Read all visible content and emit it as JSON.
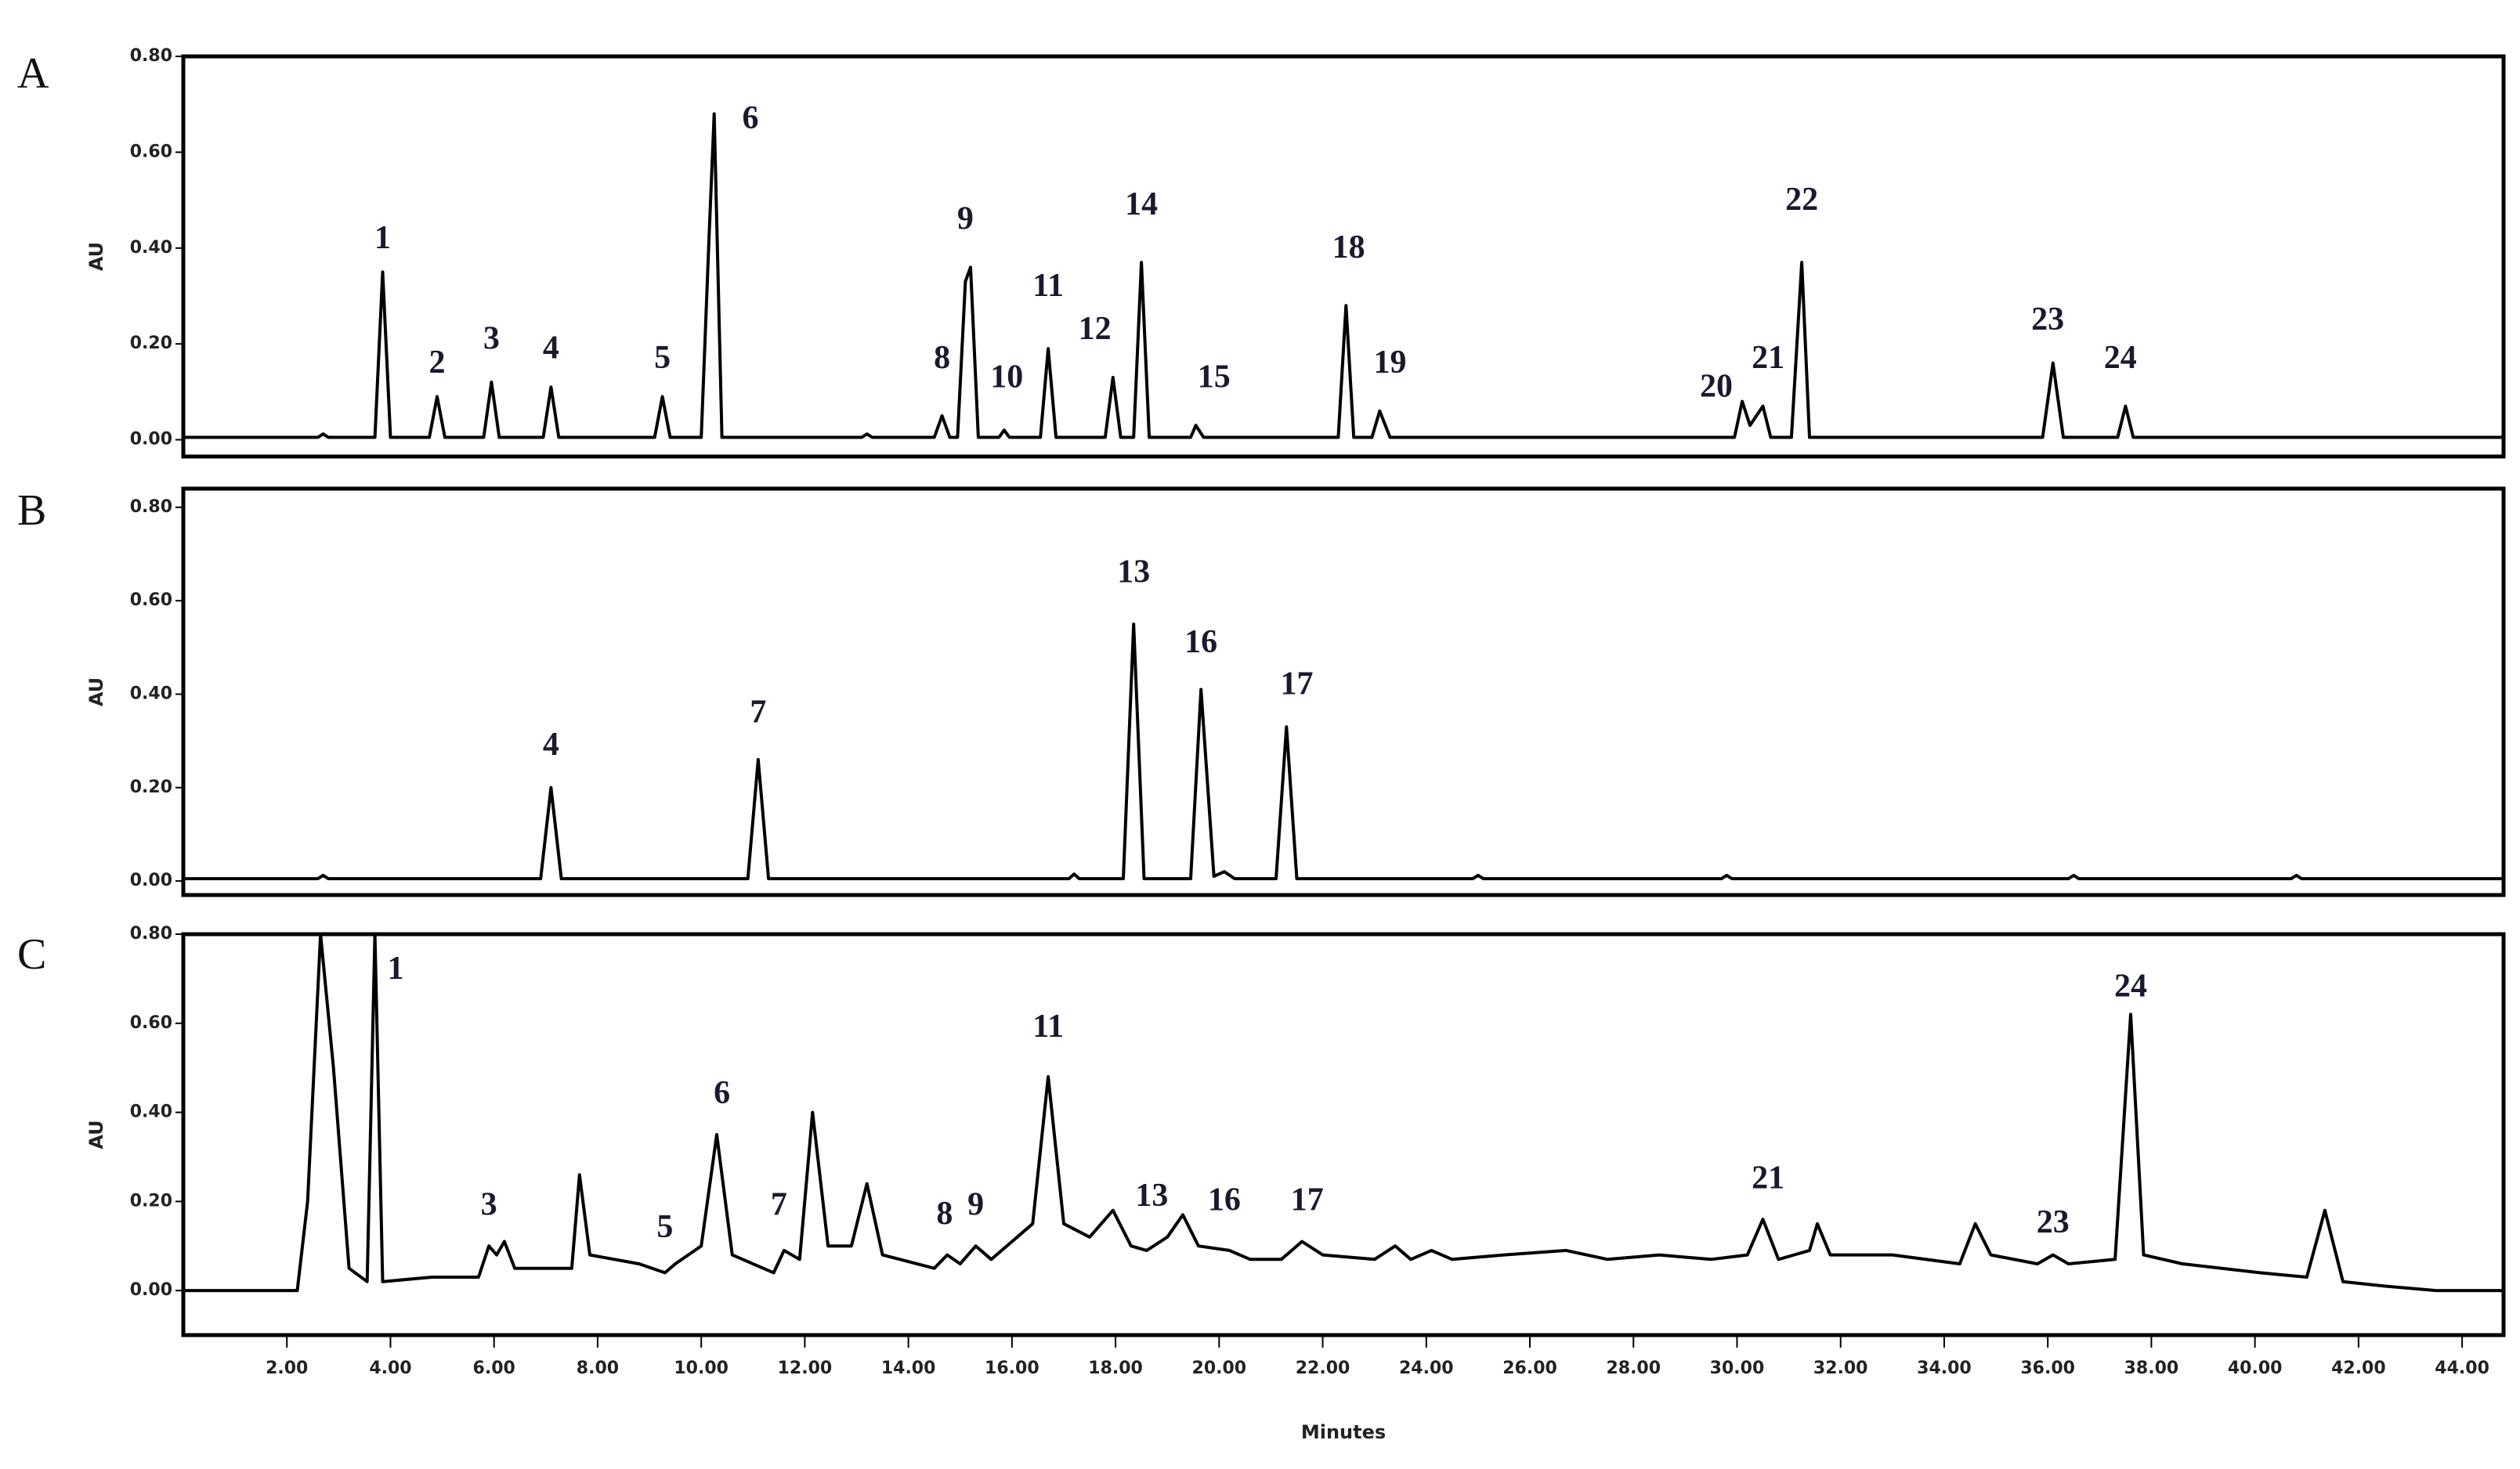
{
  "chart_data": [
    {
      "type": "line",
      "label": "A",
      "y_label": "AU",
      "color": "#000000",
      "xlim": [
        0,
        44.8
      ],
      "ylim": [
        -0.035,
        0.8
      ],
      "yticks": [
        {
          "value": 0,
          "label": "0.00"
        },
        {
          "value": 0.2,
          "label": "0.20"
        },
        {
          "value": 0.4,
          "label": "0.40"
        },
        {
          "value": 0.6,
          "label": "0.60"
        },
        {
          "value": 0.8,
          "label": "0.80"
        }
      ],
      "x": [
        0,
        2.6,
        2.7,
        2.8,
        3.7,
        3.85,
        4.0,
        4.75,
        4.9,
        5.05,
        5.8,
        5.95,
        6.1,
        6.95,
        7.1,
        7.25,
        9.1,
        9.25,
        9.4,
        10.0,
        10.15,
        10.25,
        10.4,
        13.1,
        13.2,
        13.3,
        14.5,
        14.65,
        14.8,
        14.95,
        15.1,
        15.2,
        15.35,
        15.75,
        15.85,
        15.95,
        16.55,
        16.7,
        16.85,
        17.8,
        17.95,
        18.1,
        18.35,
        18.5,
        18.65,
        19.45,
        19.55,
        19.7,
        22.3,
        22.45,
        22.6,
        22.95,
        23.1,
        23.3,
        29.95,
        30.1,
        30.25,
        30.5,
        30.65,
        31.05,
        31.25,
        31.4,
        35.9,
        36.1,
        36.3,
        37.35,
        37.5,
        37.65,
        44.8
      ],
      "values": [
        0.005,
        0.005,
        0.012,
        0.005,
        0.005,
        0.35,
        0.005,
        0.005,
        0.09,
        0.005,
        0.005,
        0.12,
        0.005,
        0.005,
        0.11,
        0.005,
        0.005,
        0.09,
        0.005,
        0.005,
        0.42,
        0.68,
        0.005,
        0.005,
        0.012,
        0.005,
        0.005,
        0.05,
        0.005,
        0.005,
        0.33,
        0.36,
        0.005,
        0.005,
        0.02,
        0.005,
        0.005,
        0.19,
        0.005,
        0.005,
        0.13,
        0.005,
        0.005,
        0.37,
        0.005,
        0.005,
        0.03,
        0.005,
        0.005,
        0.28,
        0.005,
        0.005,
        0.06,
        0.005,
        0.005,
        0.08,
        0.03,
        0.07,
        0.005,
        0.005,
        0.37,
        0.005,
        0.005,
        0.16,
        0.005,
        0.005,
        0.07,
        0.005,
        0.005
      ],
      "annotations": [
        {
          "text": "1",
          "x": 3.85,
          "y": 0.4
        },
        {
          "text": "2",
          "x": 4.9,
          "y": 0.14
        },
        {
          "text": "3",
          "x": 5.95,
          "y": 0.19
        },
        {
          "text": "4",
          "x": 7.1,
          "y": 0.17
        },
        {
          "text": "5",
          "x": 9.25,
          "y": 0.15
        },
        {
          "text": "6",
          "x": 10.95,
          "y": 0.65
        },
        {
          "text": "8",
          "x": 14.65,
          "y": 0.15
        },
        {
          "text": "9",
          "x": 15.1,
          "y": 0.44
        },
        {
          "text": "10",
          "x": 15.9,
          "y": 0.11
        },
        {
          "text": "11",
          "x": 16.7,
          "y": 0.3
        },
        {
          "text": "12",
          "x": 17.6,
          "y": 0.21
        },
        {
          "text": "14",
          "x": 18.5,
          "y": 0.47
        },
        {
          "text": "15",
          "x": 19.9,
          "y": 0.11
        },
        {
          "text": "18",
          "x": 22.5,
          "y": 0.38
        },
        {
          "text": "19",
          "x": 23.3,
          "y": 0.14
        },
        {
          "text": "20",
          "x": 29.6,
          "y": 0.09
        },
        {
          "text": "21",
          "x": 30.6,
          "y": 0.15
        },
        {
          "text": "22",
          "x": 31.25,
          "y": 0.48
        },
        {
          "text": "23",
          "x": 36.0,
          "y": 0.23
        },
        {
          "text": "24",
          "x": 37.4,
          "y": 0.15
        }
      ]
    },
    {
      "type": "line",
      "label": "B",
      "y_label": "AU",
      "color": "#000000",
      "xlim": [
        0,
        44.8
      ],
      "ylim": [
        -0.03,
        0.84
      ],
      "yticks": [
        {
          "value": 0,
          "label": "0.00"
        },
        {
          "value": 0.2,
          "label": "0.20"
        },
        {
          "value": 0.4,
          "label": "0.40"
        },
        {
          "value": 0.6,
          "label": "0.60"
        },
        {
          "value": 0.8,
          "label": "0.80"
        }
      ],
      "x": [
        0,
        2.6,
        2.7,
        2.8,
        6.9,
        7.1,
        7.3,
        10.9,
        11.1,
        11.3,
        17.1,
        17.2,
        17.3,
        18.15,
        18.35,
        18.55,
        19.45,
        19.65,
        19.9,
        20.1,
        20.3,
        21.1,
        21.3,
        21.5,
        24.9,
        25.0,
        25.1,
        29.7,
        29.8,
        29.9,
        36.4,
        36.5,
        36.6,
        40.7,
        40.8,
        40.9,
        44.8
      ],
      "values": [
        0.005,
        0.005,
        0.012,
        0.005,
        0.005,
        0.2,
        0.005,
        0.005,
        0.26,
        0.005,
        0.005,
        0.015,
        0.005,
        0.005,
        0.55,
        0.005,
        0.005,
        0.41,
        0.01,
        0.02,
        0.005,
        0.005,
        0.33,
        0.005,
        0.005,
        0.012,
        0.005,
        0.005,
        0.012,
        0.005,
        0.005,
        0.012,
        0.005,
        0.005,
        0.012,
        0.005,
        0.005
      ],
      "annotations": [
        {
          "text": "4",
          "x": 7.1,
          "y": 0.27
        },
        {
          "text": "7",
          "x": 11.1,
          "y": 0.34
        },
        {
          "text": "13",
          "x": 18.35,
          "y": 0.64
        },
        {
          "text": "16",
          "x": 19.65,
          "y": 0.49
        },
        {
          "text": "17",
          "x": 21.5,
          "y": 0.4
        }
      ]
    },
    {
      "type": "line",
      "label": "C",
      "y_label": "AU",
      "x_label": "Minutes",
      "color": "#000000",
      "xlim": [
        0,
        44.8
      ],
      "ylim": [
        -0.1,
        0.8
      ],
      "yticks": [
        {
          "value": 0,
          "label": "0.00"
        },
        {
          "value": 0.2,
          "label": "0.20"
        },
        {
          "value": 0.4,
          "label": "0.40"
        },
        {
          "value": 0.6,
          "label": "0.60"
        },
        {
          "value": 0.8,
          "label": "0.80"
        }
      ],
      "xticks": [
        {
          "value": 2,
          "label": "2.00"
        },
        {
          "value": 4,
          "label": "4.00"
        },
        {
          "value": 6,
          "label": "6.00"
        },
        {
          "value": 8,
          "label": "8.00"
        },
        {
          "value": 10,
          "label": "10.00"
        },
        {
          "value": 12,
          "label": "12.00"
        },
        {
          "value": 14,
          "label": "14.00"
        },
        {
          "value": 16,
          "label": "16.00"
        },
        {
          "value": 18,
          "label": "18.00"
        },
        {
          "value": 20,
          "label": "20.00"
        },
        {
          "value": 22,
          "label": "22.00"
        },
        {
          "value": 24,
          "label": "24.00"
        },
        {
          "value": 26,
          "label": "26.00"
        },
        {
          "value": 28,
          "label": "28.00"
        },
        {
          "value": 30,
          "label": "30.00"
        },
        {
          "value": 32,
          "label": "32.00"
        },
        {
          "value": 34,
          "label": "34.00"
        },
        {
          "value": 36,
          "label": "36.00"
        },
        {
          "value": 38,
          "label": "38.00"
        },
        {
          "value": 40,
          "label": "40.00"
        },
        {
          "value": 42,
          "label": "42.00"
        },
        {
          "value": 44,
          "label": "44.00"
        }
      ],
      "x": [
        0,
        2.2,
        2.4,
        2.65,
        2.9,
        3.2,
        3.55,
        3.7,
        3.85,
        4.8,
        5.7,
        5.9,
        6.05,
        6.2,
        6.4,
        7.5,
        7.65,
        7.85,
        8.8,
        9.3,
        9.5,
        10.0,
        10.3,
        10.6,
        11.4,
        11.6,
        11.9,
        12.15,
        12.45,
        12.9,
        13.2,
        13.5,
        14.5,
        14.75,
        15.0,
        15.3,
        15.6,
        16.4,
        16.7,
        17.0,
        17.5,
        17.95,
        18.3,
        18.6,
        19.0,
        19.3,
        19.6,
        20.2,
        20.6,
        21.2,
        21.6,
        22.0,
        23.0,
        23.4,
        23.7,
        24.1,
        24.5,
        25.5,
        26.7,
        27.5,
        28.5,
        29.5,
        30.2,
        30.5,
        30.8,
        31.4,
        31.55,
        31.8,
        33.0,
        34.3,
        34.6,
        34.9,
        35.8,
        36.1,
        36.4,
        37.3,
        37.6,
        37.85,
        38.6,
        40.1,
        41.0,
        41.35,
        41.7,
        42.5,
        43.5,
        44.8
      ],
      "values": [
        0.0,
        0.0,
        0.2,
        0.8,
        0.5,
        0.05,
        0.02,
        0.8,
        0.02,
        0.03,
        0.03,
        0.1,
        0.08,
        0.11,
        0.05,
        0.05,
        0.26,
        0.08,
        0.06,
        0.04,
        0.06,
        0.1,
        0.35,
        0.08,
        0.04,
        0.09,
        0.07,
        0.4,
        0.1,
        0.1,
        0.24,
        0.08,
        0.05,
        0.08,
        0.06,
        0.1,
        0.07,
        0.15,
        0.48,
        0.15,
        0.12,
        0.18,
        0.1,
        0.09,
        0.12,
        0.17,
        0.1,
        0.09,
        0.07,
        0.07,
        0.11,
        0.08,
        0.07,
        0.1,
        0.07,
        0.09,
        0.07,
        0.08,
        0.09,
        0.07,
        0.08,
        0.07,
        0.08,
        0.16,
        0.07,
        0.09,
        0.15,
        0.08,
        0.08,
        0.06,
        0.15,
        0.08,
        0.06,
        0.08,
        0.06,
        0.07,
        0.62,
        0.08,
        0.06,
        0.04,
        0.03,
        0.18,
        0.02,
        0.01,
        0.0,
        0.0
      ],
      "annotations": [
        {
          "text": "1",
          "x": 4.1,
          "y": 0.7
        },
        {
          "text": "3",
          "x": 5.9,
          "y": 0.17
        },
        {
          "text": "5",
          "x": 9.3,
          "y": 0.12
        },
        {
          "text": "6",
          "x": 10.4,
          "y": 0.42
        },
        {
          "text": "7",
          "x": 11.5,
          "y": 0.17
        },
        {
          "text": "8",
          "x": 14.7,
          "y": 0.15
        },
        {
          "text": "9",
          "x": 15.3,
          "y": 0.17
        },
        {
          "text": "11",
          "x": 16.7,
          "y": 0.57
        },
        {
          "text": "13",
          "x": 18.7,
          "y": 0.19
        },
        {
          "text": "16",
          "x": 20.1,
          "y": 0.18
        },
        {
          "text": "17",
          "x": 21.7,
          "y": 0.18
        },
        {
          "text": "21",
          "x": 30.6,
          "y": 0.23
        },
        {
          "text": "23",
          "x": 36.1,
          "y": 0.13
        },
        {
          "text": "24",
          "x": 37.6,
          "y": 0.66
        }
      ]
    }
  ]
}
